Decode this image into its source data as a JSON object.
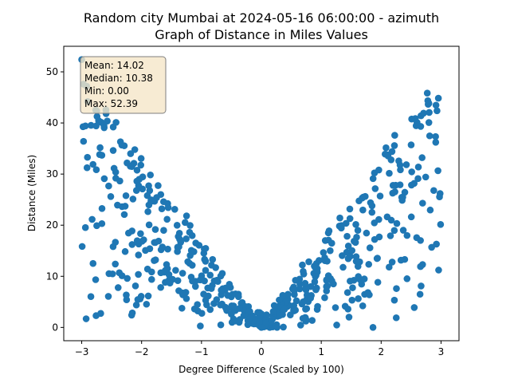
{
  "chart_data": {
    "type": "scatter",
    "title_line1": "Random city Mumbai at 2024-05-16 06:00:00  - azimuth",
    "title_line2": "Graph of Distance in Miles Values",
    "xlabel": "Degree Difference (Scaled by 100)",
    "ylabel": "Distance (Miles)",
    "xlim": [
      -3.3,
      3.3
    ],
    "ylim": [
      -2.6,
      55.0
    ],
    "xticks": [
      -3,
      -2,
      -1,
      0,
      1,
      2,
      3
    ],
    "yticks": [
      0,
      10,
      20,
      30,
      40,
      50
    ],
    "grid": false,
    "marker_color": "#1f77b4",
    "stats_box": {
      "lines": [
        "Mean: 14.02",
        "Median: 10.38",
        "Min: 0.00",
        "Max: 52.39"
      ],
      "facecolor": "#f5e6c8",
      "edgecolor": "#7f7f7f"
    }
  }
}
